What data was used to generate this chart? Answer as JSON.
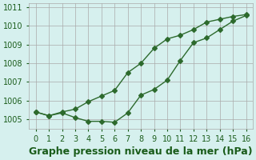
{
  "line1_x": [
    0,
    1,
    2,
    3,
    4,
    5,
    6,
    7,
    8,
    9,
    10,
    11,
    12,
    13,
    14,
    15,
    16
  ],
  "line1_y": [
    1005.4,
    1005.2,
    1005.4,
    1005.55,
    1005.95,
    1006.25,
    1006.55,
    1007.5,
    1008.0,
    1008.8,
    1009.3,
    1009.5,
    1009.8,
    1010.2,
    1010.35,
    1010.5,
    1010.6
  ],
  "line2_x": [
    0,
    1,
    2,
    3,
    4,
    5,
    6,
    7,
    8,
    9,
    10,
    11,
    12,
    13,
    14,
    15,
    16
  ],
  "line2_y": [
    1005.4,
    1005.2,
    1005.35,
    1005.1,
    1004.9,
    1004.9,
    1004.85,
    1005.35,
    1006.3,
    1006.6,
    1007.1,
    1008.15,
    1009.1,
    1009.35,
    1009.8,
    1010.25,
    1010.55
  ],
  "line_color": "#2d6a2d",
  "marker": "D",
  "markersize": 3,
  "bg_color": "#d6f0ee",
  "grid_color": "#aaaaaa",
  "xlabel": "Graphe pression niveau de la mer (hPa)",
  "xlabel_color": "#1a5c1a",
  "xlabel_fontsize": 9,
  "tick_color": "#1a5c1a",
  "tick_fontsize": 7,
  "ylim": [
    1004.5,
    1011.2
  ],
  "xlim": [
    -0.5,
    16.5
  ],
  "yticks": [
    1005,
    1006,
    1007,
    1008,
    1009,
    1010,
    1011
  ],
  "xticks": [
    0,
    1,
    2,
    3,
    4,
    5,
    6,
    7,
    8,
    9,
    10,
    11,
    12,
    13,
    14,
    15,
    16
  ]
}
